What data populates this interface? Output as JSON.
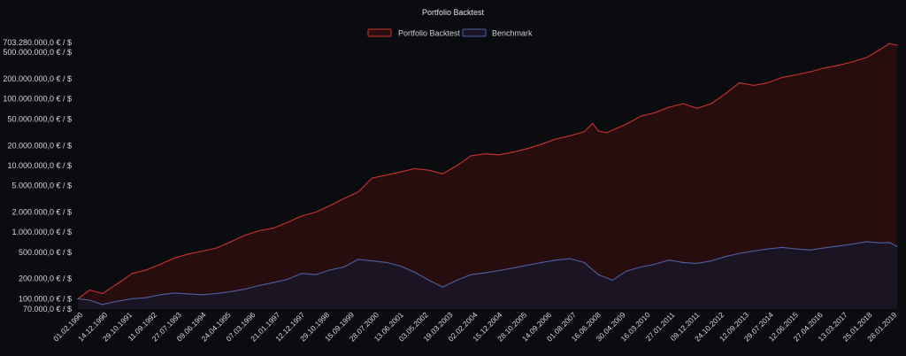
{
  "chart_data": {
    "type": "area",
    "title": "Portfolio Backtest",
    "xlabel": "",
    "ylabel": "",
    "yscale": "log",
    "ylim": [
      70000,
      703280000
    ],
    "grid": false,
    "legend": "top-center",
    "colors": {
      "background": "#0b0c0f",
      "portfolio_line": "#c8332f",
      "portfolio_fill": "#2a0e10",
      "benchmark_line": "#4e5fa0",
      "benchmark_fill": "#1a1526",
      "text": "#d8d8d8"
    },
    "y_ticks": [
      {
        "value": 70000,
        "label": "70.000,0 € / $"
      },
      {
        "value": 100000,
        "label": "100.000,0 € / $"
      },
      {
        "value": 200000,
        "label": "200.000,0 € / $"
      },
      {
        "value": 500000,
        "label": "500.000,0 € / $"
      },
      {
        "value": 1000000,
        "label": "1.000.000,0 € / $"
      },
      {
        "value": 2000000,
        "label": "2.000.000,0 € / $"
      },
      {
        "value": 5000000,
        "label": "5.000.000,0 € / $"
      },
      {
        "value": 10000000,
        "label": "10.000.000,0 € / $"
      },
      {
        "value": 20000000,
        "label": "20.000.000,0 € / $"
      },
      {
        "value": 50000000,
        "label": "50.000.000,0 € / $"
      },
      {
        "value": 100000000,
        "label": "100.000.000,0 € / $"
      },
      {
        "value": 200000000,
        "label": "200.000.000,0 € / $"
      },
      {
        "value": 500000000,
        "label": "500.000.000,0 € / $"
      },
      {
        "value": 703280000,
        "label": "703.280.000,0 € / $"
      }
    ],
    "x_ticks": [
      "01.02.1990",
      "14.12.1990",
      "29.10.1991",
      "11.09.1992",
      "27.07.1993",
      "09.06.1994",
      "24.04.1995",
      "07.03.1996",
      "21.01.1997",
      "12.12.1997",
      "29.10.1998",
      "15.09.1999",
      "28.07.2000",
      "13.06.2001",
      "03.05.2002",
      "19.03.2003",
      "02.02.2004",
      "15.12.2004",
      "28.10.2005",
      "14.09.2006",
      "01.08.2007",
      "16.06.2008",
      "30.04.2009",
      "16.03.2010",
      "27.01.2011",
      "09.12.2011",
      "24.10.2012",
      "12.09.2013",
      "29.07.2014",
      "12.06.2015",
      "27.04.2016",
      "13.03.2017",
      "25.01.2018",
      "28.01.2019"
    ],
    "series": [
      {
        "name": "Portfolio Backtest",
        "x": [
          1990.08,
          1990.5,
          1990.95,
          1991.5,
          1992.0,
          1992.5,
          1993.0,
          1993.5,
          1994.0,
          1994.5,
          1995.0,
          1995.5,
          1996.0,
          1996.5,
          1997.0,
          1997.5,
          1998.0,
          1998.5,
          1999.0,
          1999.5,
          2000.0,
          2000.5,
          2001.0,
          2001.5,
          2002.0,
          2002.5,
          2003.0,
          2003.5,
          2004.0,
          2004.5,
          2005.0,
          2005.5,
          2006.0,
          2006.5,
          2007.0,
          2007.5,
          2008.0,
          2008.3,
          2008.5,
          2008.8,
          2009.0,
          2009.5,
          2010.0,
          2010.5,
          2011.0,
          2011.5,
          2012.0,
          2012.5,
          2013.0,
          2013.5,
          2014.0,
          2014.5,
          2015.0,
          2015.5,
          2016.0,
          2016.5,
          2017.0,
          2017.5,
          2018.0,
          2018.5,
          2018.8,
          2019.08
        ],
        "values": [
          100000,
          135000,
          120000,
          170000,
          240000,
          270000,
          330000,
          410000,
          470000,
          520000,
          580000,
          720000,
          900000,
          1050000,
          1150000,
          1400000,
          1750000,
          2000000,
          2500000,
          3200000,
          4000000,
          6500000,
          7200000,
          8000000,
          9000000,
          8500000,
          7500000,
          10000000,
          14000000,
          15000000,
          14500000,
          16000000,
          18000000,
          21000000,
          25000000,
          28000000,
          32000000,
          43000000,
          33000000,
          31000000,
          34000000,
          42000000,
          55000000,
          62000000,
          75000000,
          85000000,
          72000000,
          85000000,
          120000000,
          175000000,
          160000000,
          175000000,
          210000000,
          230000000,
          255000000,
          290000000,
          320000000,
          360000000,
          420000000,
          560000000,
          680000000,
          640000000
        ]
      },
      {
        "name": "Benchmark",
        "x": [
          1990.08,
          1990.5,
          1990.95,
          1991.5,
          1992.0,
          1992.5,
          1993.0,
          1993.5,
          1994.0,
          1994.5,
          1995.0,
          1995.5,
          1996.0,
          1996.5,
          1997.0,
          1997.5,
          1998.0,
          1998.5,
          1999.0,
          1999.5,
          2000.0,
          2000.5,
          2001.0,
          2001.5,
          2002.0,
          2002.5,
          2003.0,
          2003.5,
          2004.0,
          2004.5,
          2005.0,
          2005.5,
          2006.0,
          2006.5,
          2007.0,
          2007.5,
          2008.0,
          2008.5,
          2009.0,
          2009.5,
          2010.0,
          2010.5,
          2011.0,
          2011.5,
          2012.0,
          2012.5,
          2013.0,
          2013.5,
          2014.0,
          2014.5,
          2015.0,
          2015.5,
          2016.0,
          2016.5,
          2017.0,
          2017.5,
          2018.0,
          2018.5,
          2018.8,
          2019.08
        ],
        "values": [
          100000,
          95000,
          82000,
          92000,
          100000,
          104000,
          115000,
          122000,
          118000,
          115000,
          120000,
          128000,
          140000,
          158000,
          175000,
          195000,
          240000,
          230000,
          270000,
          300000,
          390000,
          370000,
          350000,
          310000,
          250000,
          190000,
          150000,
          190000,
          230000,
          245000,
          265000,
          290000,
          320000,
          350000,
          380000,
          400000,
          350000,
          230000,
          190000,
          260000,
          300000,
          330000,
          380000,
          350000,
          340000,
          370000,
          430000,
          480000,
          520000,
          560000,
          590000,
          560000,
          540000,
          580000,
          620000,
          660000,
          720000,
          690000,
          700000,
          610000
        ]
      }
    ]
  }
}
